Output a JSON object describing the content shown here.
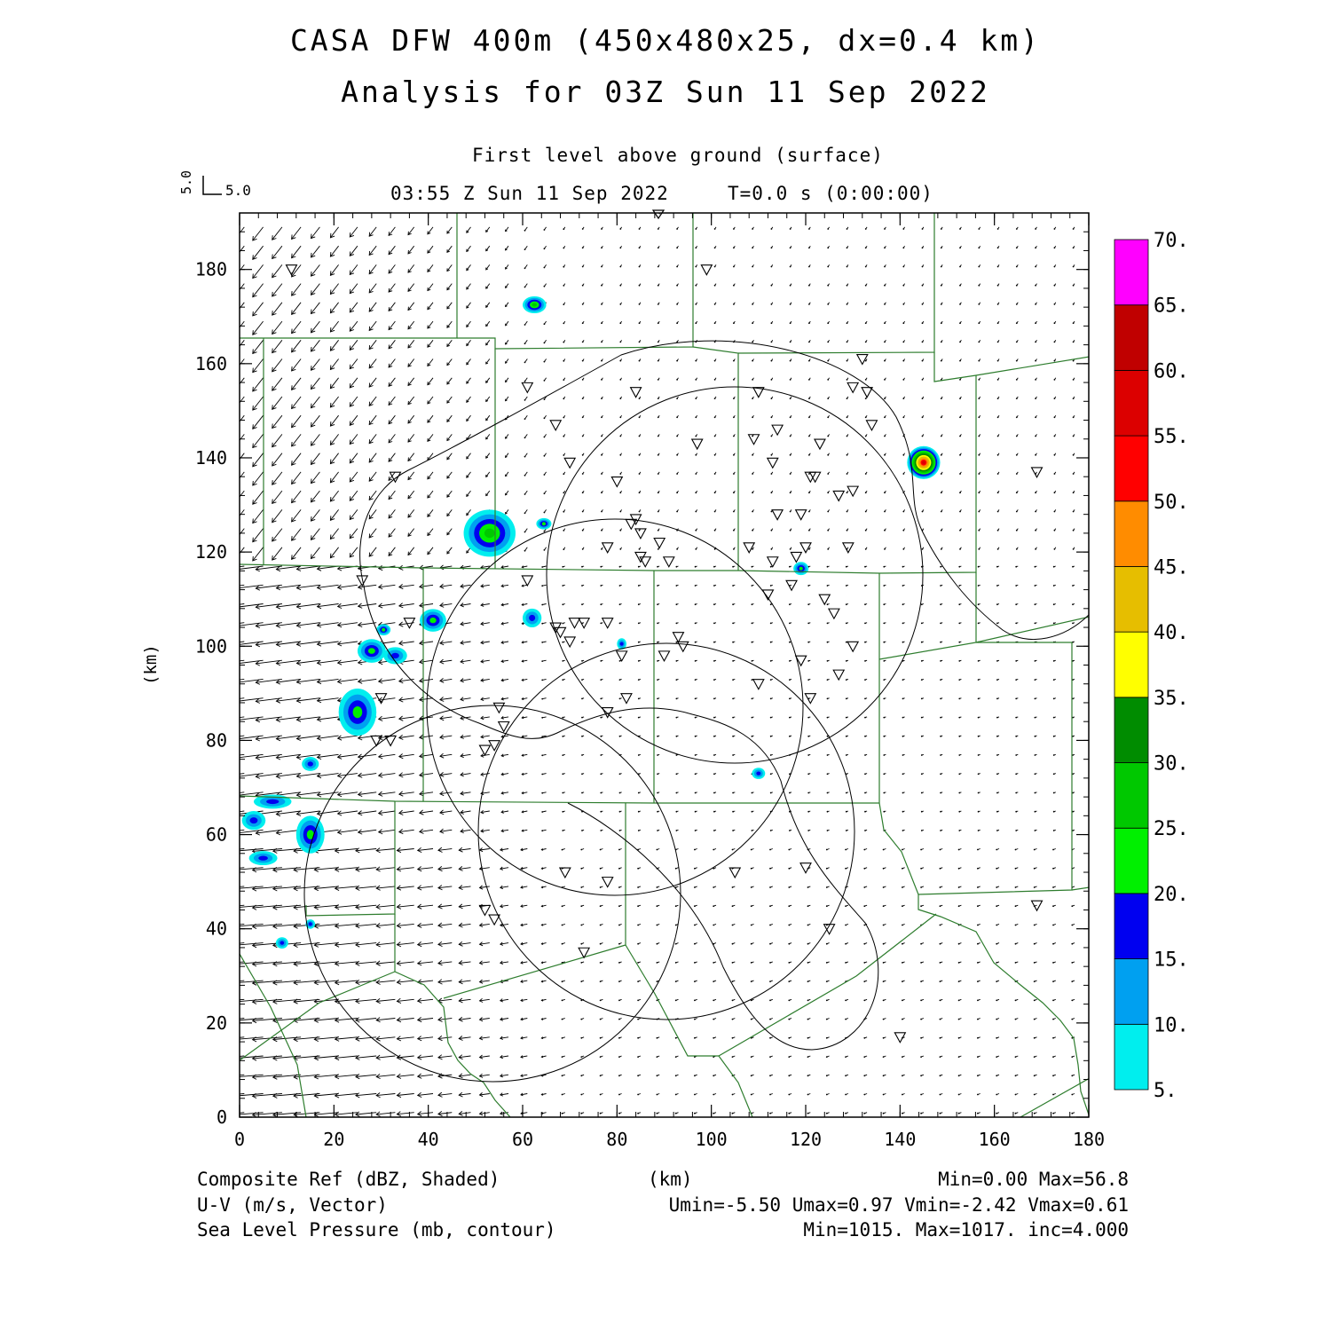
{
  "header": {
    "title_line1": "CASA DFW 400m (450x480x25, dx=0.4 km)",
    "title_line2": "Analysis for 03Z Sun 11 Sep 2022",
    "level": "First level above ground (surface)",
    "valid_time": "03:55 Z Sun 11 Sep 2022",
    "forecast_time": "T=0.0 s (0:00:00)",
    "vector_scale_u": "5.0",
    "vector_scale_v": "5.0"
  },
  "axes": {
    "x_unit": "(km)",
    "y_unit": "(km)",
    "x_range": [
      0,
      180
    ],
    "y_range": [
      0,
      192
    ],
    "x_ticks": [
      0,
      20,
      40,
      60,
      80,
      100,
      120,
      140,
      160,
      180
    ],
    "y_ticks": [
      0,
      20,
      40,
      60,
      80,
      100,
      120,
      140,
      160,
      180
    ]
  },
  "footer": {
    "field1_label": "Composite Ref (dBZ, Shaded)",
    "field1_stats": "Min=0.00 Max=56.8",
    "field2_label": "U-V (m/s, Vector)",
    "field2_stats": "Umin=-5.50 Umax=0.97 Vmin=-2.42 Vmax=0.61",
    "field3_label": "Sea Level Pressure (mb, contour)",
    "field3_stats": "Min=1015. Max=1017. inc=4.000"
  },
  "colorbar": {
    "labels": [
      "5.",
      "10.",
      "15.",
      "20.",
      "25.",
      "30.",
      "35.",
      "40.",
      "45.",
      "50.",
      "55.",
      "60.",
      "65.",
      "70."
    ],
    "colors": [
      "#00eeee",
      "#00a0f0",
      "#0000f0",
      "#00f000",
      "#00c800",
      "#008c00",
      "#ffff00",
      "#e6be00",
      "#ff8c00",
      "#ff0000",
      "#dc0000",
      "#c00000",
      "#ff00ff"
    ]
  },
  "chart_data": {
    "type": "heatmap",
    "xlim": [
      0,
      180
    ],
    "ylim": [
      0,
      192
    ],
    "reflectivity_cells": [
      {
        "x": 62.5,
        "y": 172.5,
        "rx": 2.5,
        "ry": 1.8,
        "max_dbz": 27
      },
      {
        "x": 145,
        "y": 139,
        "rx": 3.5,
        "ry": 3.5,
        "max_dbz": 56.8
      },
      {
        "x": 53,
        "y": 124,
        "rx": 5.5,
        "ry": 5,
        "max_dbz": 25
      },
      {
        "x": 64.5,
        "y": 126,
        "rx": 1.6,
        "ry": 1.2,
        "max_dbz": 20
      },
      {
        "x": 119,
        "y": 116.5,
        "rx": 1.6,
        "ry": 1.4,
        "max_dbz": 24
      },
      {
        "x": 41,
        "y": 105.5,
        "rx": 2.8,
        "ry": 2.4,
        "max_dbz": 24
      },
      {
        "x": 30.5,
        "y": 103.5,
        "rx": 1.5,
        "ry": 1.2,
        "max_dbz": 21
      },
      {
        "x": 28,
        "y": 99,
        "rx": 3,
        "ry": 2.5,
        "max_dbz": 22
      },
      {
        "x": 33,
        "y": 98,
        "rx": 2.5,
        "ry": 1.8,
        "max_dbz": 17
      },
      {
        "x": 25,
        "y": 86,
        "rx": 4,
        "ry": 5,
        "max_dbz": 24
      },
      {
        "x": 81,
        "y": 100.5,
        "rx": 1,
        "ry": 1.2,
        "max_dbz": 17
      },
      {
        "x": 110,
        "y": 73,
        "rx": 1.4,
        "ry": 1.2,
        "max_dbz": 17
      },
      {
        "x": 62,
        "y": 106,
        "rx": 2,
        "ry": 2,
        "max_dbz": 15
      },
      {
        "x": 15,
        "y": 75,
        "rx": 1.8,
        "ry": 1.5,
        "max_dbz": 17
      },
      {
        "x": 15,
        "y": 60,
        "rx": 3,
        "ry": 4,
        "max_dbz": 20
      },
      {
        "x": 7,
        "y": 67,
        "rx": 4,
        "ry": 1.5,
        "max_dbz": 16
      },
      {
        "x": 3,
        "y": 63,
        "rx": 2.5,
        "ry": 2,
        "max_dbz": 18
      },
      {
        "x": 5,
        "y": 55,
        "rx": 3,
        "ry": 1.5,
        "max_dbz": 17
      },
      {
        "x": 9,
        "y": 37,
        "rx": 1.3,
        "ry": 1.2,
        "max_dbz": 16
      },
      {
        "x": 15,
        "y": 41,
        "rx": 1,
        "ry": 1,
        "max_dbz": 15
      }
    ],
    "pressure_contour_value_mb": 1015,
    "station_count": 60
  }
}
